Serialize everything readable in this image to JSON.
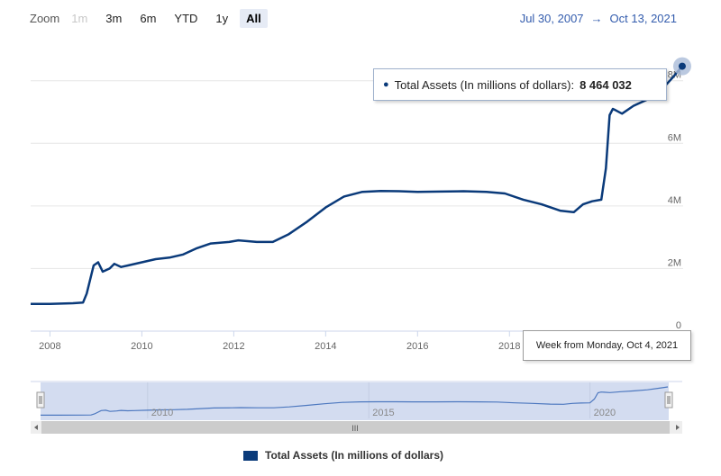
{
  "toolbar": {
    "zoom_label": "Zoom",
    "buttons": [
      "1m",
      "3m",
      "6m",
      "YTD",
      "1y",
      "All"
    ],
    "active": "All",
    "disabled": [
      "1m"
    ],
    "range_from": "Jul 30, 2007",
    "range_arrow": "→",
    "range_to": "Oct 13, 2021"
  },
  "tooltip": {
    "series_label": "Total Assets (In millions of dollars):",
    "value": "8 464 032",
    "date_label": "Week from Monday, Oct 4, 2021"
  },
  "legend": {
    "label": "Total Assets (In millions of dollars)"
  },
  "colors": {
    "series": "#0a3a7a",
    "navigator_fill": "#d3dcf0",
    "grid": "#e6e6e6",
    "accent": "#335cad"
  },
  "chart_data": {
    "type": "line",
    "title": "",
    "xlabel": "",
    "ylabel": "",
    "x_ticks": [
      "2008",
      "2010",
      "2012",
      "2014",
      "2016",
      "2018"
    ],
    "y_ticks": [
      "0",
      "2M",
      "4M",
      "6M",
      "8M"
    ],
    "navigator_ticks": [
      "2010",
      "2015",
      "2020"
    ],
    "xlim": [
      2007.58,
      2021.78
    ],
    "ylim": [
      0,
      9200000
    ],
    "series": [
      {
        "name": "Total Assets (In millions of dollars)",
        "x": [
          2007.58,
          2008.0,
          2008.5,
          2008.72,
          2008.8,
          2008.95,
          2009.05,
          2009.15,
          2009.3,
          2009.4,
          2009.55,
          2009.7,
          2010.0,
          2010.3,
          2010.6,
          2010.9,
          2011.2,
          2011.5,
          2011.9,
          2012.1,
          2012.5,
          2012.85,
          2013.2,
          2013.6,
          2014.0,
          2014.4,
          2014.8,
          2015.2,
          2015.6,
          2016.0,
          2016.5,
          2017.0,
          2017.5,
          2017.9,
          2018.3,
          2018.7,
          2019.1,
          2019.4,
          2019.6,
          2019.8,
          2020.0,
          2020.1,
          2020.18,
          2020.25,
          2020.32,
          2020.45,
          2020.7,
          2021.0,
          2021.3,
          2021.55,
          2021.76
        ],
        "values": [
          870000,
          870000,
          890000,
          910000,
          1200000,
          2100000,
          2200000,
          1900000,
          2000000,
          2150000,
          2050000,
          2100000,
          2200000,
          2300000,
          2350000,
          2450000,
          2650000,
          2800000,
          2850000,
          2900000,
          2850000,
          2850000,
          3100000,
          3500000,
          3950000,
          4300000,
          4450000,
          4480000,
          4470000,
          4450000,
          4460000,
          4470000,
          4450000,
          4400000,
          4200000,
          4050000,
          3850000,
          3800000,
          4050000,
          4150000,
          4200000,
          5200000,
          6900000,
          7100000,
          7050000,
          6950000,
          7200000,
          7400000,
          7700000,
          8100000,
          8464032
        ]
      }
    ],
    "grid": true,
    "legend_position": "bottom"
  }
}
